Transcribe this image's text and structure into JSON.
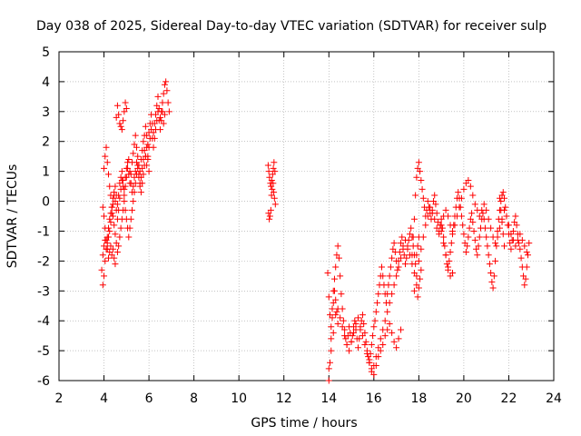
{
  "chart_data": {
    "type": "scatter",
    "title": "Day 038 of 2025, Sidereal Day-to-day VTEC variation (SDTVAR) for receiver sulp",
    "xlabel": "GPS time / hours",
    "ylabel": "SDTVAR / TECUs",
    "xlim": [
      2,
      24
    ],
    "ylim": [
      -6,
      5
    ],
    "xticks": [
      "2",
      "4",
      "6",
      "8",
      "10",
      "12",
      "14",
      "16",
      "18",
      "20",
      "22",
      "24"
    ],
    "yticks": [
      "5",
      "4",
      "3",
      "2",
      "1",
      "0",
      "-1",
      "-2",
      "-3",
      "-4",
      "-5",
      "-6"
    ],
    "grid": true,
    "marker": "+",
    "color": "#ff0000",
    "series": [
      {
        "x": [
          3.9,
          3.95,
          4.0,
          4.05,
          4.1,
          4.15,
          4.2,
          4.25,
          4.3,
          4.35,
          4.4,
          4.45,
          4.5,
          4.55,
          4.6,
          4.65,
          4.7,
          4.75,
          4.8,
          4.85,
          4.9,
          4.95,
          5.0,
          5.05,
          5.1,
          5.15,
          5.2,
          5.25,
          5.3,
          5.35,
          5.4,
          5.45,
          5.5,
          5.55,
          5.6,
          5.65,
          5.7,
          5.75,
          5.8,
          5.85,
          5.9,
          5.95,
          6.0,
          6.05,
          6.1,
          6.15,
          6.2,
          6.25,
          6.3,
          6.35,
          6.4,
          6.45,
          6.5,
          6.55,
          6.6,
          6.65,
          6.7,
          6.75,
          6.8,
          6.85,
          6.9,
          3.95,
          4.0,
          4.05,
          4.1,
          4.15,
          4.2,
          4.25,
          4.3,
          4.35,
          4.4,
          4.45,
          4.5,
          4.55,
          4.6,
          4.65,
          4.7,
          4.75,
          4.8,
          4.85,
          4.9,
          4.95,
          5.0,
          5.05,
          5.1,
          5.15,
          5.2,
          5.25,
          5.3,
          5.35,
          5.4,
          5.45,
          5.5,
          5.55,
          5.6,
          5.65,
          5.7,
          5.75,
          5.8,
          5.85,
          5.9,
          5.95,
          6.0,
          6.05,
          6.1,
          6.15,
          6.2,
          6.25,
          6.3,
          6.35,
          6.4,
          6.45,
          6.5,
          6.55,
          6.6,
          6.65,
          6.7,
          4.0,
          4.05,
          4.1,
          4.15,
          4.2,
          4.25,
          4.3,
          4.35,
          4.4,
          4.45,
          4.5,
          4.55,
          4.6,
          4.65,
          4.7,
          4.75,
          4.8,
          4.85,
          4.9,
          4.95,
          5.0,
          5.05,
          5.1,
          5.15,
          5.2,
          5.25,
          5.3,
          5.35,
          5.4,
          5.45,
          5.5,
          5.55,
          5.6,
          5.65,
          5.7,
          5.75,
          5.8,
          5.85,
          5.9,
          5.95,
          6.0,
          3.95,
          4.0,
          4.05,
          4.1,
          4.15,
          4.2,
          4.25,
          4.3,
          4.35,
          4.4,
          4.45,
          4.5,
          4.55,
          4.6,
          4.65,
          4.7,
          4.75,
          4.8,
          4.85,
          4.9,
          4.95,
          5.0
        ],
        "y": [
          -2.3,
          -2.8,
          -2.5,
          -2.0,
          -1.6,
          -1.2,
          -0.9,
          -0.6,
          -0.4,
          -0.2,
          0.1,
          0.3,
          0.5,
          0.2,
          -0.1,
          0.2,
          0.6,
          0.8,
          1.0,
          0.7,
          0.4,
          0.8,
          1.1,
          1.3,
          0.9,
          0.6,
          0.9,
          1.3,
          1.6,
          1.9,
          2.2,
          1.8,
          1.5,
          1.2,
          1.0,
          1.4,
          1.7,
          2.0,
          2.2,
          2.5,
          2.2,
          1.9,
          2.3,
          2.6,
          2.9,
          2.6,
          2.3,
          2.6,
          2.9,
          3.2,
          3.5,
          3.1,
          2.8,
          3.0,
          3.3,
          3.6,
          3.9,
          4.0,
          3.7,
          3.3,
          3.0,
          -1.8,
          -1.5,
          -1.3,
          -1.6,
          -1.4,
          -1.2,
          -1.0,
          -0.7,
          -0.4,
          -0.1,
          0.2,
          0.0,
          -0.3,
          -0.6,
          -0.3,
          0.1,
          0.4,
          0.7,
          0.5,
          0.2,
          0.5,
          0.8,
          1.1,
          1.4,
          1.0,
          0.6,
          0.3,
          0.5,
          0.8,
          1.0,
          1.3,
          1.1,
          0.8,
          0.5,
          0.8,
          1.1,
          1.4,
          1.7,
          1.5,
          1.2,
          1.5,
          1.8,
          2.1,
          2.4,
          2.1,
          1.8,
          2.1,
          2.4,
          2.7,
          3.0,
          2.7,
          2.4,
          2.7,
          3.0,
          2.6,
          2.9,
          1.1,
          1.5,
          1.8,
          1.3,
          0.9,
          0.5,
          0.2,
          -0.2,
          -0.5,
          -0.8,
          -1.1,
          -1.4,
          -1.7,
          -1.5,
          -1.2,
          -0.9,
          -0.6,
          -0.3,
          0.0,
          -0.3,
          -0.6,
          -0.9,
          -1.2,
          -0.9,
          -0.6,
          -0.3,
          0.0,
          0.3,
          0.6,
          0.9,
          1.2,
          0.9,
          0.6,
          0.3,
          0.6,
          0.9,
          1.2,
          1.5,
          1.8,
          1.4,
          1.0,
          -0.2,
          -0.5,
          -0.9,
          -1.3,
          -1.6,
          -1.9,
          -1.7,
          -1.5,
          -1.8,
          -1.6,
          -1.9,
          -2.1,
          2.8,
          3.2,
          2.9,
          2.6,
          2.5,
          2.4,
          2.7,
          3.0,
          3.3,
          3.1
        ]
      },
      {
        "x": [
          11.3,
          11.33,
          11.36,
          11.4,
          11.43,
          11.46,
          11.5,
          11.53,
          11.56,
          11.6,
          11.32,
          11.35,
          11.38,
          11.42,
          11.45,
          11.48,
          11.52,
          11.55,
          11.58,
          11.62
        ],
        "y": [
          1.2,
          1.0,
          0.8,
          0.6,
          0.5,
          0.7,
          0.9,
          1.1,
          1.3,
          1.0,
          -0.4,
          -0.6,
          -0.5,
          -0.3,
          0.2,
          0.4,
          0.6,
          0.3,
          0.1,
          -0.1
        ]
      },
      {
        "x": [
          13.95,
          14.0,
          14.05,
          14.1,
          14.15,
          14.2,
          14.25,
          14.3,
          14.35,
          14.4,
          14.45,
          14.5,
          14.55,
          14.6,
          14.65,
          14.7,
          14.75,
          14.8,
          14.85,
          14.9,
          14.95,
          15.0,
          15.05,
          15.1,
          15.15,
          15.2,
          15.25,
          15.3,
          15.35,
          15.4,
          15.45,
          15.5,
          15.55,
          15.6,
          15.65,
          15.7,
          15.75,
          15.8,
          15.85,
          15.9,
          15.95,
          16.0,
          16.05,
          16.1,
          16.15,
          16.2,
          16.25,
          16.3,
          16.35,
          16.4,
          16.45,
          16.5,
          16.55,
          16.6,
          16.65,
          16.7,
          16.75,
          16.8,
          16.85,
          16.9,
          16.95,
          17.0,
          17.05,
          17.1,
          17.15,
          17.2,
          17.25,
          17.3,
          17.35,
          17.4,
          17.45,
          17.5,
          17.55,
          17.6,
          17.65,
          17.7,
          17.75,
          17.8,
          17.85,
          17.9,
          17.95,
          18.0,
          14.0,
          14.1,
          14.2,
          14.3,
          14.4,
          14.5,
          14.6,
          14.7,
          14.8,
          14.9,
          15.0,
          15.1,
          15.2,
          15.3,
          15.4,
          15.5,
          15.6,
          15.7,
          15.8,
          15.9,
          16.0,
          16.1,
          16.2,
          16.3,
          16.4,
          16.5,
          16.6,
          16.7,
          16.8,
          16.9,
          17.0,
          17.1,
          17.2,
          17.3,
          17.4,
          17.5,
          17.6,
          17.7,
          17.8,
          14.0,
          14.05,
          14.1,
          14.15,
          14.2,
          14.25,
          14.3,
          14.35,
          14.4,
          15.8,
          15.9,
          16.0,
          16.1,
          16.2,
          16.3,
          16.4,
          16.5,
          16.6,
          16.7,
          16.8,
          16.9,
          17.0,
          17.1,
          17.2
        ],
        "y": [
          -2.4,
          -3.2,
          -3.8,
          -4.2,
          -3.6,
          -3.0,
          -2.6,
          -2.2,
          -1.8,
          -1.5,
          -1.9,
          -2.5,
          -3.1,
          -3.6,
          -4.0,
          -4.3,
          -4.6,
          -4.8,
          -4.5,
          -4.2,
          -4.4,
          -4.7,
          -4.5,
          -4.2,
          -4.0,
          -4.3,
          -4.6,
          -4.9,
          -4.6,
          -4.3,
          -4.0,
          -3.8,
          -4.1,
          -4.4,
          -4.7,
          -5.0,
          -5.2,
          -5.4,
          -5.1,
          -4.8,
          -4.5,
          -4.2,
          -4.0,
          -3.7,
          -3.4,
          -3.1,
          -2.8,
          -2.5,
          -2.2,
          -2.5,
          -2.8,
          -3.1,
          -3.4,
          -3.1,
          -2.8,
          -2.5,
          -2.2,
          -1.9,
          -1.6,
          -1.4,
          -1.7,
          -2.0,
          -2.3,
          -2.0,
          -1.7,
          -1.4,
          -1.2,
          -1.5,
          -1.8,
          -2.1,
          -1.9,
          -1.6,
          -1.3,
          -1.1,
          -0.9,
          -1.2,
          -1.5,
          -1.8,
          -2.1,
          -1.8,
          -1.5,
          -1.2,
          -5.6,
          -5.0,
          -4.4,
          -3.8,
          -3.6,
          -3.9,
          -4.2,
          -4.5,
          -4.8,
          -5.0,
          -4.7,
          -4.4,
          -4.1,
          -3.9,
          -4.2,
          -4.5,
          -4.8,
          -5.1,
          -5.4,
          -5.7,
          -5.5,
          -5.2,
          -4.9,
          -4.6,
          -4.3,
          -4.0,
          -3.7,
          -3.4,
          -3.1,
          -2.8,
          -2.5,
          -2.2,
          -1.9,
          -1.6,
          -1.3,
          -1.5,
          -1.8,
          -2.1,
          -2.4,
          -6.0,
          -5.4,
          -4.6,
          -3.9,
          -3.4,
          -3.0,
          -3.3,
          -3.7,
          -4.1,
          -5.3,
          -5.6,
          -5.8,
          -5.5,
          -5.2,
          -5.0,
          -4.8,
          -4.5,
          -4.3,
          -4.1,
          -4.4,
          -4.7,
          -4.9,
          -4.6,
          -4.3
        ]
      },
      {
        "x": [
          17.7,
          17.75,
          17.8,
          17.85,
          17.9,
          17.95,
          18.0,
          18.05,
          18.1,
          18.15,
          18.2,
          18.25,
          18.3,
          18.35,
          18.4,
          18.45,
          18.5,
          18.55,
          18.6,
          18.65,
          18.7,
          18.75,
          18.8,
          18.85,
          18.9,
          18.95,
          19.0,
          19.05,
          19.1,
          19.15,
          19.2,
          19.25,
          19.3,
          19.35,
          19.4,
          19.45,
          19.5,
          19.55,
          19.6,
          19.65,
          19.7,
          19.75,
          19.8,
          19.85,
          19.9,
          19.95,
          20.0,
          20.05,
          20.1,
          20.15,
          20.2,
          20.25,
          20.3,
          20.35,
          20.4,
          20.45,
          20.5,
          20.55,
          20.6,
          20.65,
          20.7,
          20.75,
          20.8,
          20.85,
          20.9,
          20.95,
          21.0,
          21.05,
          21.1,
          21.15,
          21.2,
          21.25,
          21.3,
          21.35,
          21.4,
          21.45,
          21.5,
          21.55,
          21.6,
          21.65,
          21.7,
          21.75,
          21.8,
          21.85,
          21.9,
          21.95,
          22.0,
          22.05,
          22.1,
          22.15,
          22.2,
          22.25,
          22.3,
          22.35,
          22.4,
          22.45,
          22.5,
          22.55,
          22.6,
          22.65,
          22.7,
          22.75,
          22.8,
          22.85,
          22.9,
          17.8,
          17.9,
          18.0,
          18.1,
          18.2,
          18.3,
          18.4,
          18.5,
          18.6,
          18.7,
          18.8,
          18.9,
          19.0,
          19.1,
          19.2,
          19.3,
          19.4,
          19.5,
          19.6,
          19.7,
          19.8,
          19.9,
          20.0,
          20.1,
          20.2,
          20.3,
          20.4,
          20.5,
          20.6,
          20.7,
          20.8,
          20.9,
          21.0,
          21.1,
          21.2,
          21.3,
          21.4,
          21.5,
          21.6,
          21.7,
          21.8,
          21.9,
          22.0,
          22.1,
          22.2,
          22.3,
          22.4,
          22.5,
          22.6,
          22.7,
          22.8,
          17.9,
          17.95,
          18.0,
          18.05,
          18.1,
          19.0,
          19.1,
          19.2,
          19.3,
          19.4,
          19.5,
          21.6,
          21.65,
          21.7,
          21.75,
          21.8
        ],
        "y": [
          -1.8,
          -1.2,
          -0.6,
          0.2,
          0.8,
          1.1,
          1.3,
          1.0,
          0.7,
          0.4,
          0.1,
          -0.2,
          -0.5,
          -0.3,
          0.0,
          -0.2,
          -0.4,
          -0.6,
          -0.3,
          0.0,
          0.2,
          -0.1,
          -0.4,
          -0.7,
          -1.0,
          -0.8,
          -0.6,
          -0.9,
          -1.2,
          -1.5,
          -1.8,
          -2.1,
          -2.3,
          -2.0,
          -1.7,
          -1.4,
          -1.1,
          -0.8,
          -0.5,
          -0.2,
          0.1,
          0.3,
          0.1,
          -0.2,
          -0.5,
          -0.8,
          -1.1,
          -1.4,
          -1.7,
          -1.5,
          -1.2,
          -0.9,
          -0.6,
          -0.4,
          -0.7,
          -1.0,
          -1.3,
          -1.6,
          -1.8,
          -1.5,
          -1.2,
          -0.9,
          -0.6,
          -0.4,
          -0.6,
          -0.9,
          -1.2,
          -1.5,
          -1.8,
          -2.1,
          -2.4,
          -2.7,
          -2.9,
          -2.5,
          -2.0,
          -1.5,
          -1.0,
          -0.6,
          -0.3,
          0.0,
          0.2,
          0.3,
          0.1,
          -0.2,
          -0.5,
          -0.8,
          -1.1,
          -1.4,
          -1.6,
          -1.3,
          -1.0,
          -0.7,
          -0.5,
          -0.8,
          -1.1,
          -1.4,
          -1.6,
          -1.9,
          -2.2,
          -2.5,
          -2.8,
          -2.6,
          -2.2,
          -1.8,
          -1.4,
          -3.0,
          -2.5,
          -2.0,
          -1.6,
          -1.2,
          -0.8,
          -0.5,
          -0.2,
          -0.4,
          -0.6,
          -0.9,
          -1.1,
          -0.8,
          -0.5,
          -0.3,
          -0.5,
          -0.8,
          -1.0,
          -0.8,
          -0.5,
          -0.2,
          0.1,
          0.4,
          0.6,
          0.7,
          0.5,
          0.2,
          -0.1,
          -0.3,
          -0.5,
          -0.3,
          -0.1,
          -0.3,
          -0.6,
          -0.9,
          -1.2,
          -1.4,
          -1.2,
          -0.9,
          -0.6,
          -0.3,
          -0.5,
          -0.8,
          -1.1,
          -1.3,
          -1.5,
          -1.3,
          -1.1,
          -1.3,
          -1.5,
          -1.7,
          -2.8,
          -3.2,
          -2.9,
          -2.6,
          -2.3,
          -1.0,
          -1.4,
          -1.8,
          -2.2,
          -2.5,
          -2.4,
          0.1,
          -0.3,
          -0.7,
          -1.1,
          -1.5
        ]
      }
    ]
  }
}
